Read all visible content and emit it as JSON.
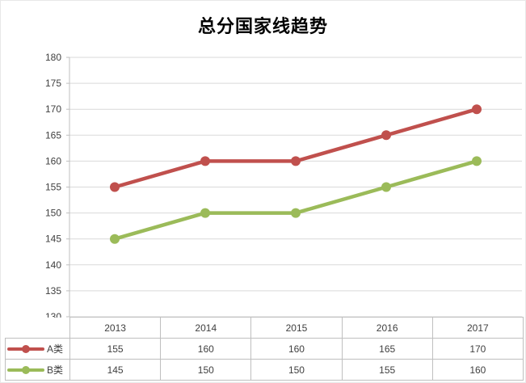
{
  "title": "总分国家线趋势",
  "chart_data": {
    "type": "line",
    "title": "总分国家线趋势",
    "categories": [
      "2013",
      "2014",
      "2015",
      "2016",
      "2017"
    ],
    "series": [
      {
        "name": "A类",
        "color": "#c0504d",
        "values": [
          155,
          160,
          160,
          165,
          170
        ]
      },
      {
        "name": "B类",
        "color": "#9bbb59",
        "values": [
          145,
          150,
          150,
          155,
          160
        ]
      }
    ],
    "ylim": [
      130,
      180
    ],
    "ytick_step": 5,
    "grid": true,
    "legend_position": "table-left",
    "xlabel": "",
    "ylabel": "",
    "colors": {
      "gridline": "#d9d9d9",
      "axis": "#bfbfbf",
      "tick_label": "#404040",
      "table_border": "#bfbfbf"
    }
  }
}
